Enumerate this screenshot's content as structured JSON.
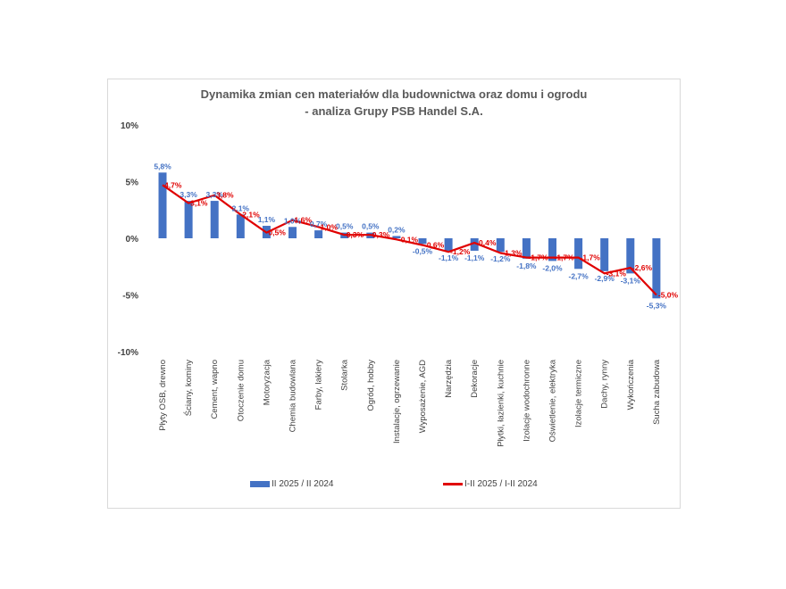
{
  "chart_data": {
    "type": "bar",
    "title": "Dynamika zmian cen materiałów dla budownictwa oraz domu i ogrodu",
    "subtitle": "- analiza Grupy PSB Handel S.A.",
    "ylim": [
      -10,
      10
    ],
    "yticks": [
      -10,
      -5,
      0,
      5,
      10
    ],
    "ytick_labels": [
      "-10%",
      "-5%",
      "0%",
      "5%",
      "10%"
    ],
    "categories": [
      "Płyty OSB, drewno",
      "Ściany, kominy",
      "Cement, wapno",
      "Otoczenie domu",
      "Motoryzacja",
      "Chemia budowlana",
      "Farby, lakiery",
      "Stolarka",
      "Ogród, hobby",
      "Instalacje, ogrzewanie",
      "Wyposażenie, AGD",
      "Narzędzia",
      "Dekoracje",
      "Płytki, łazienki, kuchnie",
      "Izolacje wodochronne",
      "Oświetlenie, elektryka",
      "Izolacje termiczne",
      "Dachy, rynny",
      "Wykończenia",
      "Sucha zabudowa"
    ],
    "series": [
      {
        "name": "II 2025 / II 2024",
        "type": "bar",
        "color": "#4472c4",
        "values": [
          5.8,
          3.3,
          3.3,
          2.1,
          1.1,
          1.0,
          0.7,
          0.5,
          0.5,
          0.2,
          -0.5,
          -1.1,
          -1.1,
          -1.2,
          -1.8,
          -2.0,
          -2.7,
          -2.9,
          -3.1,
          -5.3
        ],
        "labels": [
          "5,8%",
          "3,3%",
          "3,3%",
          "2,1%",
          "1,1%",
          "1,0%",
          "0,7%",
          "0,5%",
          "0,5%",
          "0,2%",
          "-0,5%",
          "-1,1%",
          "-1,1%",
          "-1,2%",
          "-1,8%",
          "-2,0%",
          "-2,7%",
          "-2,9%",
          "-3,1%",
          "-5,3%"
        ]
      },
      {
        "name": "I-II 2025 / I-II 2024",
        "type": "line",
        "color": "#e00000",
        "values": [
          4.7,
          3.1,
          3.8,
          2.1,
          0.5,
          1.6,
          1.0,
          0.3,
          0.3,
          -0.1,
          -0.6,
          -1.2,
          -0.4,
          -1.3,
          -1.7,
          -1.7,
          -1.7,
          -3.1,
          -2.6,
          -5.0
        ],
        "labels": [
          "4,7%",
          "3,1%",
          "3,8%",
          "2,1%",
          "0,5%",
          "1,6%",
          "1,0%",
          "0,3%",
          "0,3%",
          "-0,1%",
          "-0,6%",
          "-1,2%",
          "-0,4%",
          "-1,3%",
          "-1,7%",
          "-1,7%",
          "-1,7%",
          "-3,1%",
          "-2,6%",
          "-5,0%"
        ]
      }
    ],
    "legend_position": "bottom",
    "grid": false
  }
}
